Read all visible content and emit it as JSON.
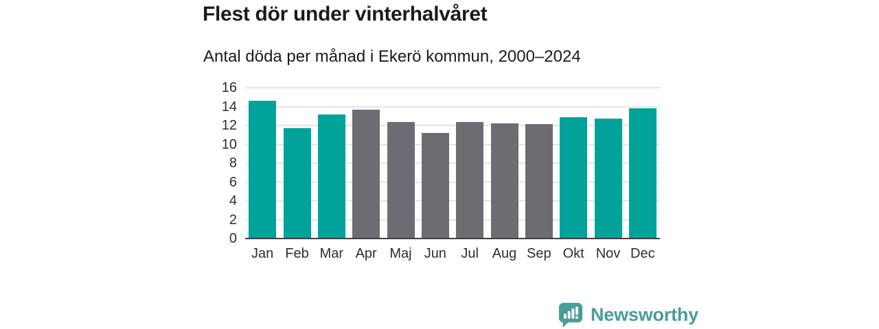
{
  "chart_data": {
    "type": "bar",
    "title": "Flest dör under vinterhalvåret",
    "subtitle": "Antal döda per månad i Ekerö kommun, 2000–2024",
    "categories": [
      "Jan",
      "Feb",
      "Mar",
      "Apr",
      "Maj",
      "Jun",
      "Jul",
      "Aug",
      "Sep",
      "Okt",
      "Nov",
      "Dec"
    ],
    "values": [
      14.6,
      11.7,
      13.2,
      13.65,
      12.4,
      11.2,
      12.35,
      12.25,
      12.15,
      12.85,
      12.75,
      13.85
    ],
    "bar_colors": [
      "#00a29a",
      "#00a29a",
      "#00a29a",
      "#6e6c72",
      "#6e6c72",
      "#6e6c72",
      "#6e6c72",
      "#6e6c72",
      "#6e6c72",
      "#00a29a",
      "#00a29a",
      "#00a29a"
    ],
    "highlight_color": "#00a29a",
    "muted_color": "#6e6c72",
    "xlabel": "",
    "ylabel": "",
    "ylim": [
      0,
      16
    ],
    "yticks": [
      0,
      2,
      4,
      6,
      8,
      10,
      12,
      14,
      16
    ],
    "grid": true,
    "legend": "none"
  },
  "colors": {
    "background": "#ffffff",
    "grid_line": "#e4e4e4",
    "axis_line": "#3f3f3f",
    "title_text": "#1b1b1b",
    "tick_text": "#2d2d2d",
    "brand_teal": "#4a9c98"
  },
  "footer": {
    "brand": "Newsworthy"
  }
}
